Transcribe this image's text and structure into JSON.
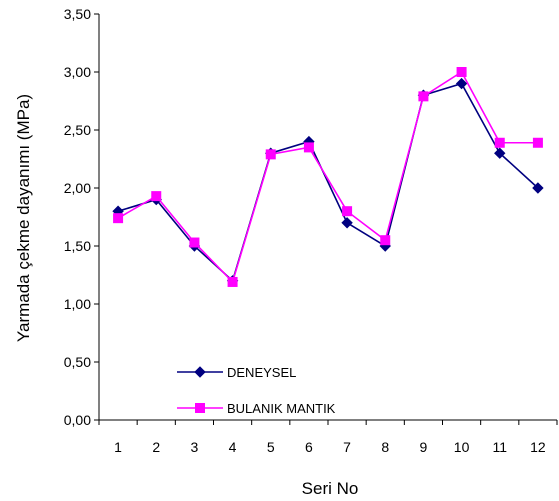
{
  "chart_data": {
    "type": "line",
    "xlabel": "Seri No",
    "ylabel": "Yarmada çekme dayanımı (MPa)",
    "categories": [
      "1",
      "2",
      "3",
      "4",
      "5",
      "6",
      "7",
      "8",
      "9",
      "10",
      "11",
      "12"
    ],
    "yticks": [
      "0,00",
      "0,50",
      "1,00",
      "1,50",
      "2,00",
      "2,50",
      "3,00",
      "3,50"
    ],
    "ylim": [
      0,
      3.5
    ],
    "grid": false,
    "legend_position": "bottom-left",
    "series": [
      {
        "name": "DENEYSEL",
        "color": "#000080",
        "marker": "diamond",
        "values": [
          1.8,
          1.9,
          1.5,
          1.2,
          2.3,
          2.4,
          1.7,
          1.5,
          2.8,
          2.9,
          2.3,
          2.0
        ]
      },
      {
        "name": "BULANIK MANTIK",
        "color": "#ff00ff",
        "marker": "square",
        "values": [
          1.74,
          1.93,
          1.53,
          1.19,
          2.29,
          2.35,
          1.8,
          1.55,
          2.79,
          3.0,
          2.39,
          2.39
        ]
      }
    ]
  }
}
